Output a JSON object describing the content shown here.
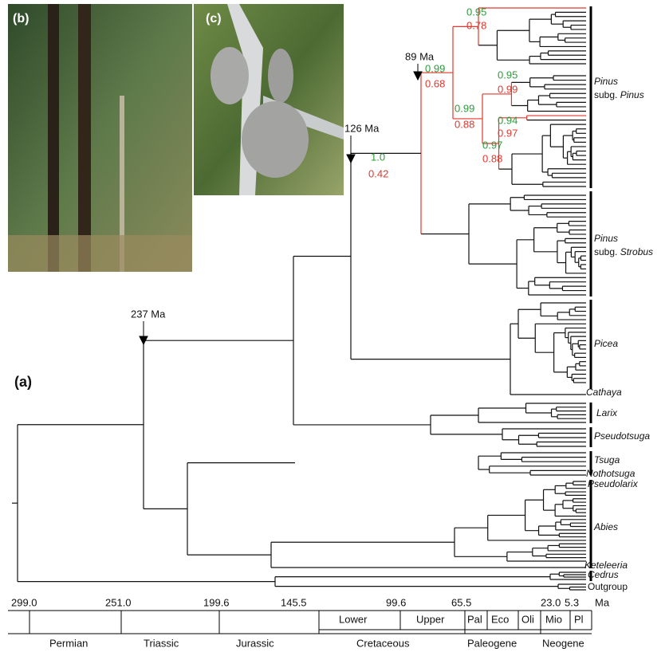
{
  "panels": {
    "a": "(a)",
    "b": "(b)",
    "c": "(c)"
  },
  "node_ages": [
    "237 Ma",
    "126 Ma",
    "89 Ma"
  ],
  "support": [
    {
      "top": "1.0",
      "bottom": "0.42"
    },
    {
      "top": "0.99",
      "bottom": "0.68"
    },
    {
      "top": "0.99",
      "bottom": "0.88"
    },
    {
      "top": "0.95",
      "bottom": "0.78"
    },
    {
      "top": "0.95",
      "bottom": "0.99"
    },
    {
      "top": "0.94",
      "bottom": "0.97"
    },
    {
      "top": "0.97",
      "bottom": "0.88"
    }
  ],
  "clades": [
    {
      "name": "Pinus",
      "rank": "subg.",
      "subname": "Pinus"
    },
    {
      "name": "Pinus",
      "rank": "subg.",
      "subname": "Strobus"
    },
    {
      "name": "Picea"
    },
    {
      "name": "Cathaya"
    },
    {
      "name": "Larix"
    },
    {
      "name": "Pseudotsuga"
    },
    {
      "name": "Tsuga"
    },
    {
      "name": "Nothotsuga"
    },
    {
      "name": "Pseudolarix"
    },
    {
      "name": "Abies"
    },
    {
      "name": "Keteleeria"
    },
    {
      "name": "Cedrus"
    },
    {
      "name": "Outgroup"
    }
  ],
  "time_axis": {
    "ticks": [
      "299.0",
      "251.0",
      "199.6",
      "145.5",
      "99.6",
      "65.5",
      "23.0",
      "5.3"
    ],
    "unit": "Ma",
    "epochs": [
      "Lower",
      "Upper",
      "Pal",
      "Eco",
      "Oli",
      "Mio",
      "Pl"
    ],
    "periods": [
      "Permian",
      "Triassic",
      "Jurassic",
      "Cretaceous",
      "Paleogene",
      "Neogene"
    ]
  }
}
